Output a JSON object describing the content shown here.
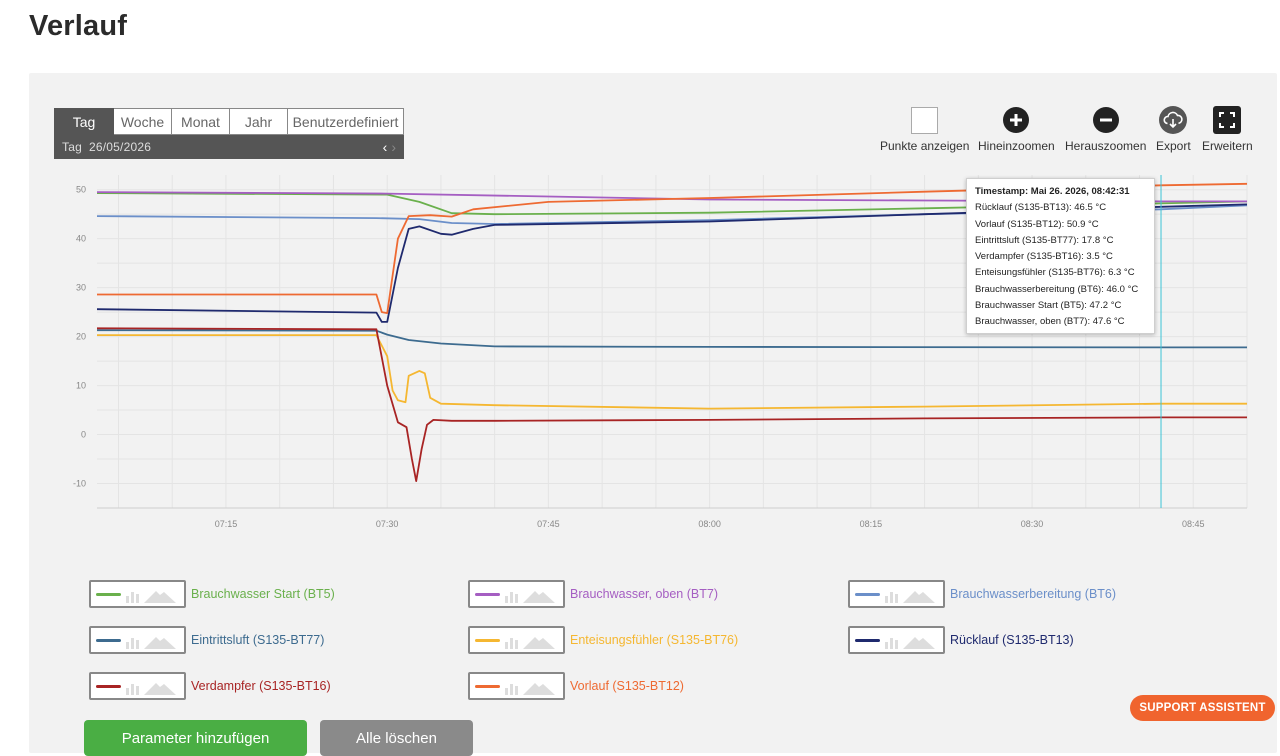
{
  "page": {
    "title": "Verlauf"
  },
  "period": {
    "tabs": [
      "Tag",
      "Woche",
      "Monat",
      "Jahr",
      "Benutzerdefiniert"
    ],
    "active": "Tag",
    "current_label": "Tag  26/05/2026"
  },
  "toolbar": {
    "show_points": "Punkte anzeigen",
    "zoom_in": "Hineinzoomen",
    "zoom_out": "Herauszoomen",
    "export": "Export",
    "expand": "Erweitern"
  },
  "tooltip": {
    "timestamp": "Timestamp: Mai 26. 2026, 08:42:31",
    "lines": [
      "Rücklauf (S135-BT13): 46.5 °C",
      "Vorlauf (S135-BT12): 50.9 °C",
      "Eintrittsluft (S135-BT77): 17.8 °C",
      "Verdampfer (S135-BT16): 3.5 °C",
      "Enteisungsfühler (S135-BT76): 6.3 °C",
      "Brauchwasserbereitung (BT6): 46.0 °C",
      "Brauchwasser Start (BT5): 47.2 °C",
      "Brauchwasser, oben (BT7): 47.6 °C"
    ]
  },
  "legend": [
    {
      "label": "Brauchwasser Start (BT5)",
      "color": "#6ab04c"
    },
    {
      "label": "Brauchwasser, oben (BT7)",
      "color": "#a55ec2"
    },
    {
      "label": "Brauchwasserbereitung (BT6)",
      "color": "#6b8fc9"
    },
    {
      "label": "Eintrittsluft (S135-BT77)",
      "color": "#3d6b8f"
    },
    {
      "label": "Enteisungsfühler (S135-BT76)",
      "color": "#f5b731"
    },
    {
      "label": "Rücklauf (S135-BT13)",
      "color": "#1f2a6e"
    },
    {
      "label": "Verdampfer (S135-BT16)",
      "color": "#a82424"
    },
    {
      "label": "Vorlauf (S135-BT12)",
      "color": "#ee6a32"
    }
  ],
  "buttons": {
    "add_param": "Parameter hinzufügen",
    "clear_all": "Alle löschen",
    "support": "SUPPORT ASSISTENT"
  },
  "chart_data": {
    "type": "line",
    "xlabel": "",
    "ylabel": "",
    "x_ticks": [
      "07:15",
      "07:30",
      "07:45",
      "08:00",
      "08:15",
      "08:30",
      "08:45"
    ],
    "y_ticks": [
      50,
      40,
      30,
      20,
      10,
      0,
      -10
    ],
    "ylim": [
      -15,
      53
    ],
    "xlim": [
      "07:03",
      "08:50"
    ],
    "grid": true,
    "cursor_time": "08:42:31",
    "series": [
      {
        "name": "Brauchwasser Start (BT5)",
        "color": "#6ab04c",
        "points": [
          [
            "07:03",
            49.3
          ],
          [
            "07:30",
            49.0
          ],
          [
            "07:33",
            47.5
          ],
          [
            "07:36",
            45.2
          ],
          [
            "07:40",
            45.0
          ],
          [
            "08:00",
            45.3
          ],
          [
            "08:20",
            46.2
          ],
          [
            "08:42",
            47.2
          ],
          [
            "08:50",
            47.6
          ]
        ]
      },
      {
        "name": "Brauchwasser, oben (BT7)",
        "color": "#a55ec2",
        "points": [
          [
            "07:03",
            49.5
          ],
          [
            "07:30",
            49.2
          ],
          [
            "07:45",
            48.6
          ],
          [
            "08:00",
            48.0
          ],
          [
            "08:20",
            47.8
          ],
          [
            "08:42",
            47.6
          ],
          [
            "08:50",
            47.6
          ]
        ]
      },
      {
        "name": "Brauchwasserbereitung (BT6)",
        "color": "#6b8fc9",
        "points": [
          [
            "07:03",
            44.6
          ],
          [
            "07:29",
            44.2
          ],
          [
            "07:33",
            44.0
          ],
          [
            "07:36",
            43.2
          ],
          [
            "07:40",
            43.0
          ],
          [
            "08:00",
            43.8
          ],
          [
            "08:20",
            45.0
          ],
          [
            "08:42",
            46.0
          ],
          [
            "08:50",
            46.8
          ]
        ]
      },
      {
        "name": "Eintrittsluft (S135-BT77)",
        "color": "#3d6b8f",
        "points": [
          [
            "07:03",
            21.3
          ],
          [
            "07:29",
            21.2
          ],
          [
            "07:30",
            20.4
          ],
          [
            "07:32",
            19.3
          ],
          [
            "07:35",
            18.6
          ],
          [
            "07:40",
            18.0
          ],
          [
            "08:00",
            17.9
          ],
          [
            "08:42",
            17.8
          ],
          [
            "08:50",
            17.8
          ]
        ]
      },
      {
        "name": "Enteisungsfühler (S135-BT76)",
        "color": "#f5b731",
        "points": [
          [
            "07:03",
            20.3
          ],
          [
            "07:29",
            20.3
          ],
          [
            "07:30",
            16.0
          ],
          [
            "07:30.5",
            9.0
          ],
          [
            "07:31",
            7.0
          ],
          [
            "07:31.7",
            6.6
          ],
          [
            "07:32",
            12.0
          ],
          [
            "07:33",
            13.0
          ],
          [
            "07:33.5",
            12.5
          ],
          [
            "07:34",
            7.5
          ],
          [
            "07:35",
            6.3
          ],
          [
            "07:40",
            6.0
          ],
          [
            "08:00",
            5.3
          ],
          [
            "08:20",
            5.7
          ],
          [
            "08:42",
            6.3
          ],
          [
            "08:50",
            6.3
          ]
        ]
      },
      {
        "name": "Rücklauf (S135-BT13)",
        "color": "#1f2a6e",
        "points": [
          [
            "07:03",
            25.6
          ],
          [
            "07:29",
            24.9
          ],
          [
            "07:29.5",
            23.0
          ],
          [
            "07:30",
            23.0
          ],
          [
            "07:31",
            34.0
          ],
          [
            "07:32",
            42.0
          ],
          [
            "07:33",
            42.5
          ],
          [
            "07:35",
            41.0
          ],
          [
            "07:36",
            40.8
          ],
          [
            "07:38",
            42.0
          ],
          [
            "07:40",
            42.8
          ],
          [
            "08:00",
            43.5
          ],
          [
            "08:20",
            45.0
          ],
          [
            "08:42",
            46.5
          ],
          [
            "08:50",
            47.0
          ]
        ]
      },
      {
        "name": "Verdampfer (S135-BT16)",
        "color": "#a82424",
        "points": [
          [
            "07:03",
            21.7
          ],
          [
            "07:29",
            21.5
          ],
          [
            "07:30",
            10.0
          ],
          [
            "07:31",
            2.5
          ],
          [
            "07:31.8",
            1.5
          ],
          [
            "07:32.3",
            -5.0
          ],
          [
            "07:32.7",
            -9.5
          ],
          [
            "07:33.2",
            -3.0
          ],
          [
            "07:33.7",
            2.0
          ],
          [
            "07:34.3",
            3.0
          ],
          [
            "07:36",
            2.8
          ],
          [
            "07:40",
            2.8
          ],
          [
            "08:00",
            3.0
          ],
          [
            "08:20",
            3.3
          ],
          [
            "08:42",
            3.5
          ],
          [
            "08:50",
            3.5
          ]
        ]
      },
      {
        "name": "Vorlauf (S135-BT12)",
        "color": "#ee6a32",
        "points": [
          [
            "07:03",
            28.6
          ],
          [
            "07:29",
            28.6
          ],
          [
            "07:29.5",
            25.0
          ],
          [
            "07:30",
            24.8
          ],
          [
            "07:31",
            40.0
          ],
          [
            "07:32",
            44.6
          ],
          [
            "07:34",
            44.8
          ],
          [
            "07:36",
            44.5
          ],
          [
            "07:38",
            46.0
          ],
          [
            "07:45",
            47.5
          ],
          [
            "08:00",
            48.3
          ],
          [
            "08:20",
            49.6
          ],
          [
            "08:42",
            50.9
          ],
          [
            "08:50",
            51.2
          ]
        ]
      }
    ]
  }
}
